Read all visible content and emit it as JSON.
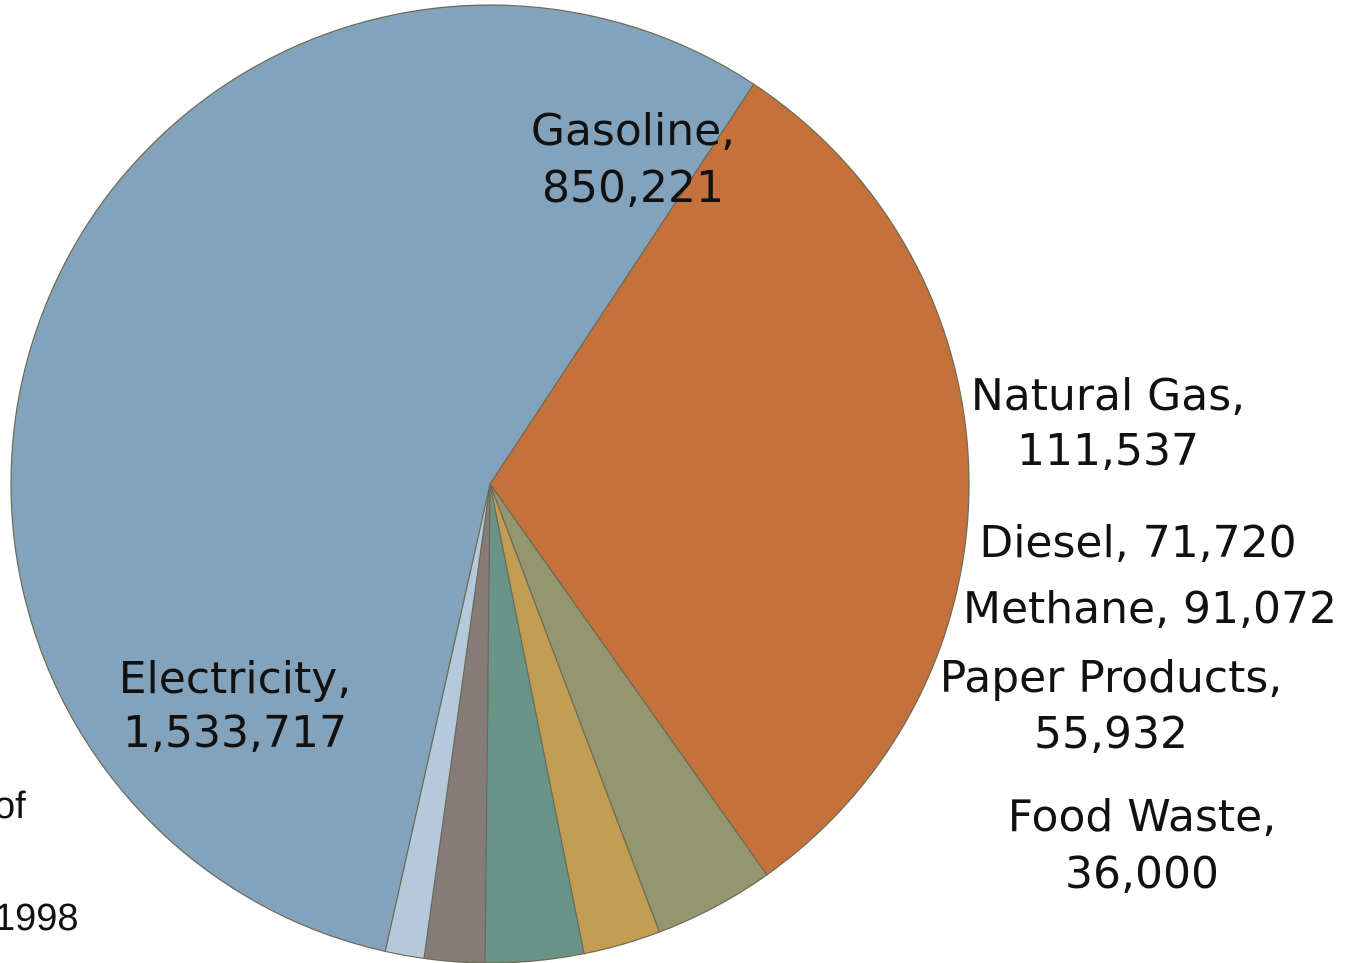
{
  "chart_data": {
    "type": "pie",
    "slices": [
      {
        "label": "Gasoline",
        "value": 850221,
        "label_lines": [
          "Gasoline,",
          "850,221"
        ],
        "color": "#C5713C"
      },
      {
        "label": "Natural Gas",
        "value": 111537,
        "label_lines": [
          "Natural Gas,",
          "111,537"
        ],
        "color": "#93966E"
      },
      {
        "label": "Diesel",
        "value": 71720,
        "label_lines": [
          "Diesel,  71,720"
        ],
        "color": "#C39D52"
      },
      {
        "label": "Methane",
        "value": 91072,
        "label_lines": [
          "Methane,  91,072"
        ],
        "color": "#6A9488"
      },
      {
        "label": "Paper Products",
        "value": 55932,
        "label_lines": [
          "Paper Products,",
          "55,932"
        ],
        "color": "#857C79"
      },
      {
        "label": "Food Waste",
        "value": 36000,
        "label_lines": [
          "Food Waste,",
          "36,000"
        ],
        "color": "#B4CADC"
      },
      {
        "label": "Electricity",
        "value": 1533717,
        "label_lines": [
          "Electricity,",
          "1,533,717"
        ],
        "color": "#83A2BC"
      }
    ]
  },
  "cut_text": {
    "line1": "of",
    "line2": "1998"
  }
}
